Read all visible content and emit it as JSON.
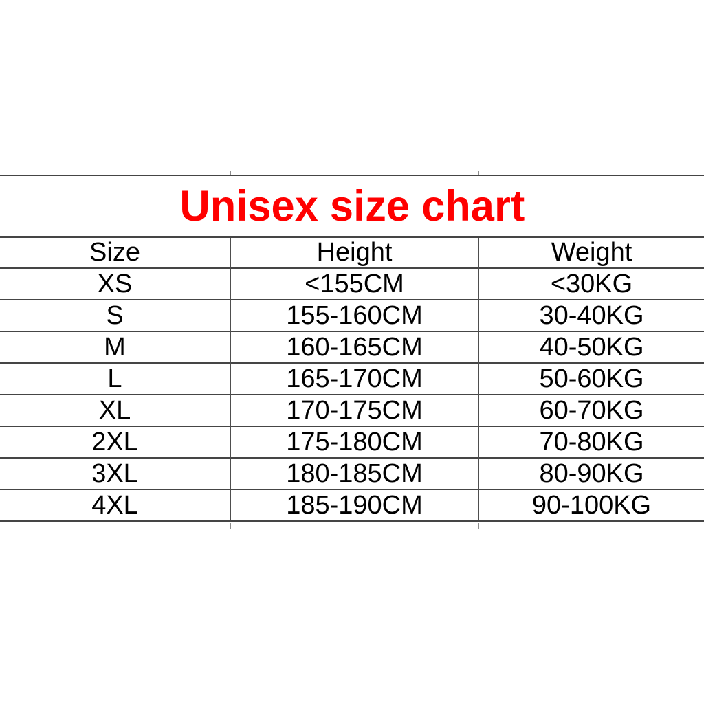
{
  "title": {
    "text": "Unisex size chart",
    "color": "#ff0000"
  },
  "table": {
    "headers": [
      "Size",
      "Height",
      "Weight"
    ],
    "rows": [
      [
        "XS",
        "<155CM",
        "<30KG"
      ],
      [
        "S",
        "155-160CM",
        "30-40KG"
      ],
      [
        "M",
        "160-165CM",
        "40-50KG"
      ],
      [
        "L",
        "165-170CM",
        "50-60KG"
      ],
      [
        "XL",
        "170-175CM",
        "60-70KG"
      ],
      [
        "2XL",
        "175-180CM",
        "70-80KG"
      ],
      [
        "3XL",
        "180-185CM",
        "80-90KG"
      ],
      [
        "4XL",
        "185-190CM",
        "90-100KG"
      ]
    ]
  },
  "colors": {
    "grid_line": "#454545",
    "tick_mark": "#8d8d8d",
    "text": "#000000",
    "background": "#ffffff"
  }
}
